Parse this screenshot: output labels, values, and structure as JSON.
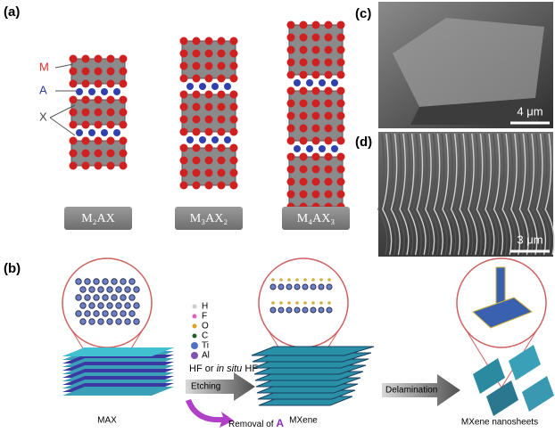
{
  "panel_a": {
    "label": "(a)",
    "site_labels": [
      "M",
      "A",
      "X"
    ],
    "phases": [
      "M₂AX",
      "M₃AX₂",
      "M₄AX₃"
    ]
  },
  "panel_b": {
    "label": "(b)",
    "legend": [
      "H",
      "F",
      "O",
      "C",
      "Ti",
      "Al"
    ],
    "etchant": [
      "HF or ",
      "in situ",
      " HF"
    ],
    "step_1": "Etching",
    "removal": [
      "Removal of ",
      "A"
    ],
    "step_2": "Delamination",
    "stages": [
      "MAX",
      "MXene",
      "MXene nanosheets"
    ]
  },
  "panel_c": {
    "label": "(c)",
    "scale_bar": "4 μm"
  },
  "panel_d": {
    "label": "(d)",
    "scale_bar": "3 μm"
  }
}
